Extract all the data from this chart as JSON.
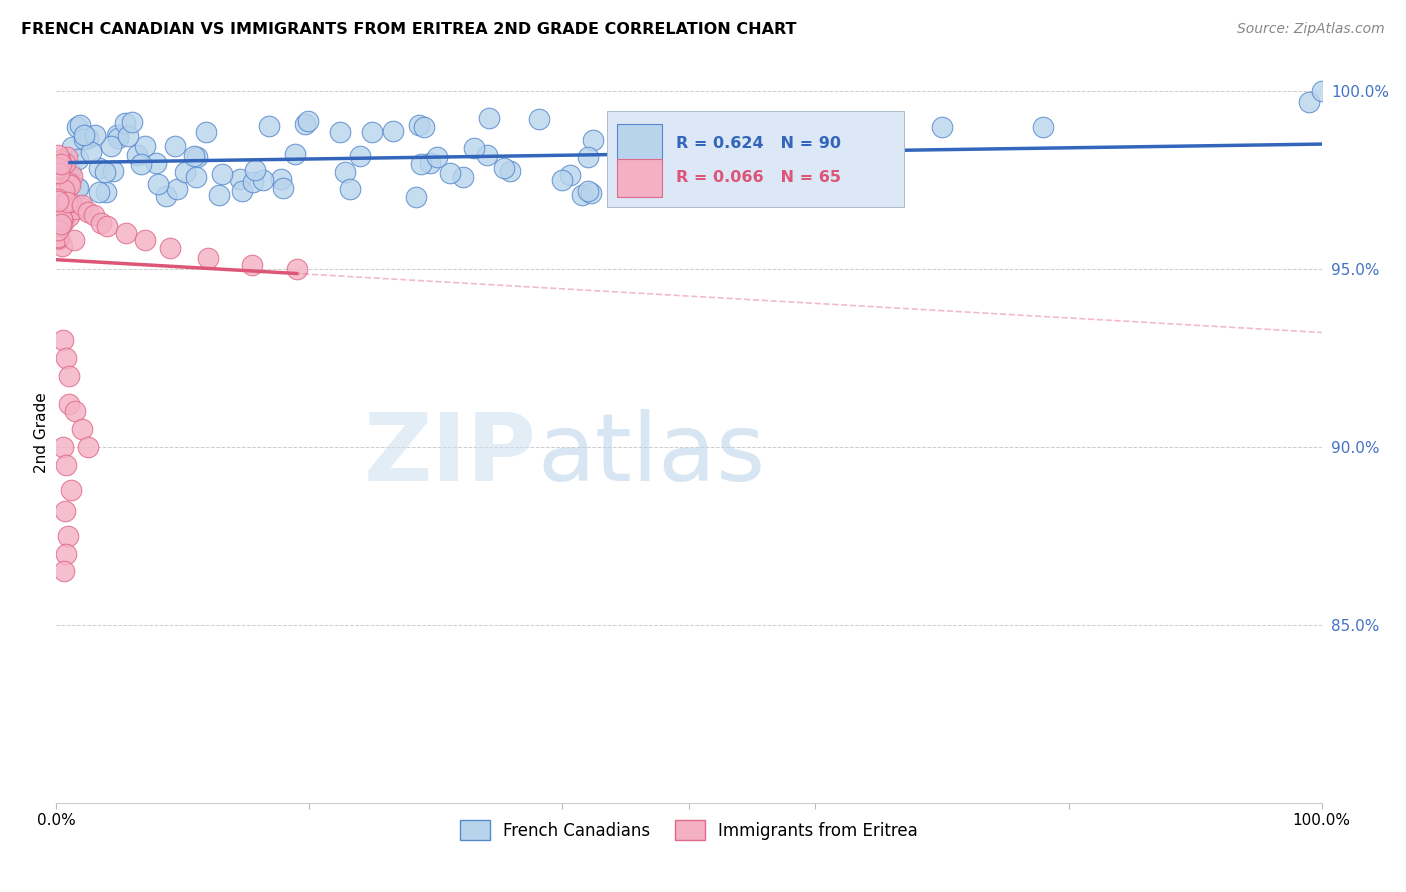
{
  "title": "FRENCH CANADIAN VS IMMIGRANTS FROM ERITREA 2ND GRADE CORRELATION CHART",
  "source": "Source: ZipAtlas.com",
  "ylabel": "2nd Grade",
  "xlim": [
    0.0,
    1.0
  ],
  "ylim": [
    0.8,
    1.008
  ],
  "yticks": [
    0.85,
    0.9,
    0.95,
    1.0
  ],
  "ytick_labels": [
    "85.0%",
    "90.0%",
    "95.0%",
    "100.0%"
  ],
  "xtick_labels": [
    "0.0%",
    "100.0%"
  ],
  "watermark_zip": "ZIP",
  "watermark_atlas": "atlas",
  "blue_R": 0.624,
  "blue_N": 90,
  "pink_R": 0.066,
  "pink_N": 65,
  "blue_fill_color": "#b8d4ec",
  "blue_edge_color": "#5588cc",
  "pink_fill_color": "#f4b0c4",
  "pink_edge_color": "#e06888",
  "blue_line_color": "#3366bb",
  "pink_line_color": "#dd5577",
  "legend_blue_label": "French Canadians",
  "legend_pink_label": "Immigrants from Eritrea",
  "legend_box_color": "#dce8f5",
  "legend_text_blue": "#3366bb",
  "legend_text_pink": "#dd5577",
  "ytick_color": "#4472c4",
  "grid_color": "#cccccc"
}
